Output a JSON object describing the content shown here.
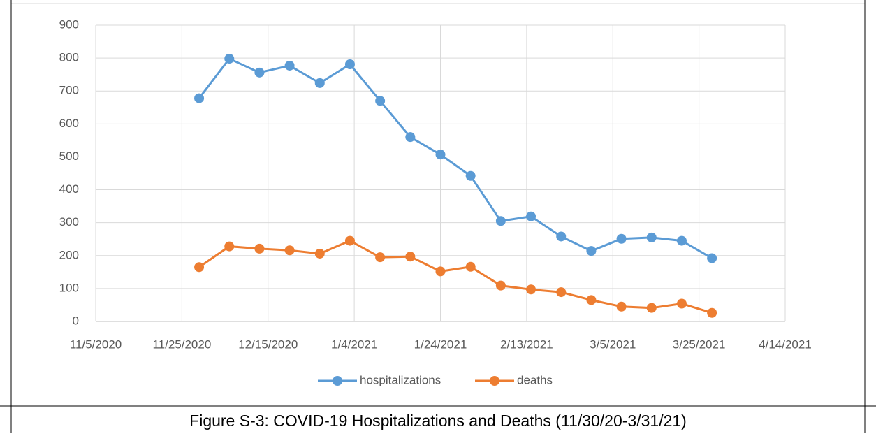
{
  "chart_data": {
    "type": "line",
    "caption": "Figure S-3: COVID-19 Hospitalizations and Deaths (11/30/20-3/31/21)",
    "x": [
      "2020-11-29",
      "2020-12-06",
      "2020-12-13",
      "2020-12-20",
      "2020-12-27",
      "2021-01-03",
      "2021-01-10",
      "2021-01-17",
      "2021-01-24",
      "2021-01-31",
      "2021-02-07",
      "2021-02-14",
      "2021-02-21",
      "2021-02-28",
      "2021-03-07",
      "2021-03-14",
      "2021-03-21",
      "2021-03-28"
    ],
    "series": [
      {
        "name": "hospitalizations",
        "color": "#5b9bd5",
        "values": [
          678,
          798,
          756,
          777,
          724,
          781,
          670,
          560,
          507,
          442,
          305,
          319,
          258,
          214,
          251,
          255,
          245,
          192
        ]
      },
      {
        "name": "deaths",
        "color": "#ed7d31",
        "values": [
          165,
          228,
          221,
          216,
          206,
          245,
          195,
          197,
          152,
          166,
          109,
          97,
          89,
          65,
          45,
          41,
          54,
          26
        ]
      }
    ],
    "xlim": [
      "2020-11-05",
      "2021-04-14"
    ],
    "xticks": [
      {
        "value": "2020-11-05",
        "label": "11/5/2020"
      },
      {
        "value": "2020-11-25",
        "label": "11/25/2020"
      },
      {
        "value": "2020-12-15",
        "label": "12/15/2020"
      },
      {
        "value": "2021-01-04",
        "label": "1/4/2021"
      },
      {
        "value": "2021-01-24",
        "label": "1/24/2021"
      },
      {
        "value": "2021-02-13",
        "label": "2/13/2021"
      },
      {
        "value": "2021-03-05",
        "label": "3/5/2021"
      },
      {
        "value": "2021-03-25",
        "label": "3/25/2021"
      },
      {
        "value": "2021-04-14",
        "label": "4/14/2021"
      }
    ],
    "ylim": [
      0,
      900
    ],
    "yticks": [
      0,
      100,
      200,
      300,
      400,
      500,
      600,
      700,
      800,
      900
    ],
    "grid": true,
    "legend": "bottom"
  }
}
